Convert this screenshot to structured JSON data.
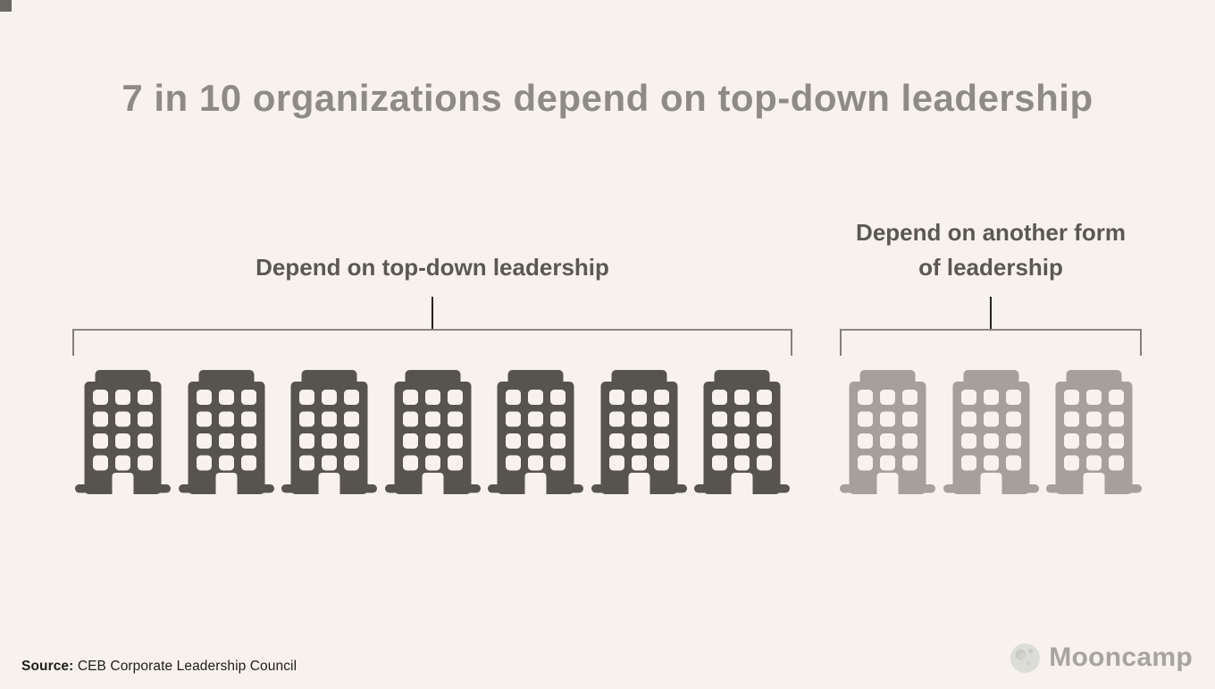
{
  "background": "#f8f2ec",
  "chart_data": {
    "type": "pictogram",
    "title": "7 in 10 organizations depend on top-down leadership",
    "unit_icon": "building-icon",
    "total_units": 10,
    "groups": [
      {
        "label": "Depend on top-down leadership",
        "label_lines": [
          "Depend on top-down leadership"
        ],
        "value": 7,
        "color": "#57534e"
      },
      {
        "label": "Depend on another form of leadership",
        "label_lines": [
          "Depend on another form",
          "of leadership"
        ],
        "value": 3,
        "color": "#a5a099"
      }
    ],
    "source": "CEB Corporate Leadership Council",
    "legend_position": "above-brackets",
    "colors": {
      "title": "#8e8b87",
      "label": "#5b5853",
      "bracket_line": "#8a8781",
      "bracket_stem": "#23221f",
      "window": "#f8f2ec"
    }
  },
  "footer": {
    "source_prefix": "Source:",
    "source_text": " CEB Corporate Leadership Council",
    "brand_name": "Mooncamp",
    "brand_icon": "moon-icon",
    "brand_colors": {
      "text": "#a7a49f",
      "moon": "#dcdcd9",
      "crater": "#c9c9c6"
    }
  }
}
